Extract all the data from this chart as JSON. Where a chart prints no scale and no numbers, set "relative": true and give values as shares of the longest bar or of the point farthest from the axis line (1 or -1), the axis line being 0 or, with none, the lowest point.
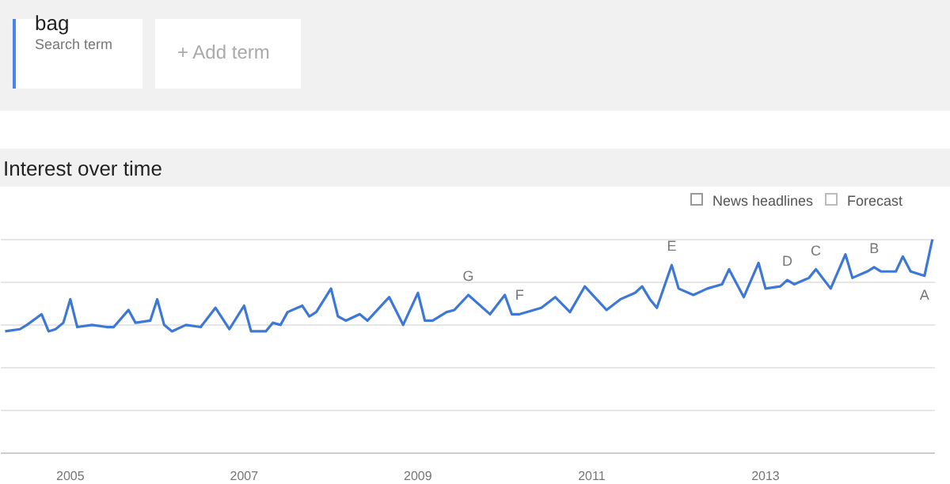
{
  "chart_data": {
    "type": "line",
    "title": "Interest over time",
    "relative": true,
    "grid": "y",
    "annotations": [
      "bag",
      "Search term",
      "+ Add term",
      "News headlines",
      "Forecast",
      {
        "text": "G",
        "x": 2009.58,
        "y": 0.74
      },
      {
        "text": "F",
        "x": 2010.17,
        "y": 0.65
      },
      {
        "text": "E",
        "x": 2011.92,
        "y": 0.88
      },
      {
        "text": "D",
        "x": 2013.25,
        "y": 0.81
      },
      {
        "text": "C",
        "x": 2013.58,
        "y": 0.86
      },
      {
        "text": "B",
        "x": 2014.25,
        "y": 0.87
      },
      {
        "text": "A",
        "x": 2014.83,
        "y": 0.83
      }
    ],
    "xlim": [
      2004.2,
      2014.95
    ],
    "xticks": [
      2005,
      2007,
      2009,
      2011,
      2013
    ],
    "x": [
      2004.25,
      2004.42,
      2004.5,
      2004.67,
      2004.75,
      2004.83,
      2004.92,
      2005,
      2005.08,
      2005.25,
      2005.42,
      2005.5,
      2005.67,
      2005.75,
      2005.92,
      2006,
      2006.08,
      2006.17,
      2006.33,
      2006.5,
      2006.67,
      2006.83,
      2007,
      2007.08,
      2007.25,
      2007.33,
      2007.42,
      2007.5,
      2007.67,
      2007.75,
      2007.83,
      2008,
      2008.08,
      2008.17,
      2008.33,
      2008.42,
      2008.67,
      2008.83,
      2009,
      2009.08,
      2009.17,
      2009.33,
      2009.42,
      2009.58,
      2009.83,
      2010,
      2010.08,
      2010.17,
      2010.42,
      2010.58,
      2010.75,
      2010.92,
      2011.17,
      2011.33,
      2011.5,
      2011.58,
      2011.67,
      2011.75,
      2011.92,
      2012,
      2012.17,
      2012.33,
      2012.5,
      2012.58,
      2012.75,
      2012.92,
      2013,
      2013.17,
      2013.25,
      2013.33,
      2013.5,
      2013.58,
      2013.75,
      2013.92,
      2014,
      2014.17,
      2014.25,
      2014.33,
      2014.5,
      2014.58,
      2014.67,
      2014.75,
      2014.83,
      2014.92
    ],
    "series": [
      {
        "color": "#3d78d8",
        "values": [
          0.57,
          0.58,
          0.6,
          0.65,
          0.57,
          0.58,
          0.61,
          0.72,
          0.59,
          0.6,
          0.59,
          0.59,
          0.67,
          0.61,
          0.62,
          0.72,
          0.6,
          0.57,
          0.6,
          0.59,
          0.68,
          0.58,
          0.69,
          0.57,
          0.57,
          0.61,
          0.6,
          0.66,
          0.69,
          0.64,
          0.66,
          0.77,
          0.64,
          0.62,
          0.65,
          0.62,
          0.73,
          0.6,
          0.75,
          0.62,
          0.62,
          0.66,
          0.67,
          0.74,
          0.65,
          0.74,
          0.65,
          0.65,
          0.68,
          0.73,
          0.66,
          0.78,
          0.67,
          0.72,
          0.75,
          0.78,
          0.72,
          0.68,
          0.88,
          0.77,
          0.74,
          0.77,
          0.79,
          0.86,
          0.73,
          0.89,
          0.77,
          0.78,
          0.81,
          0.79,
          0.82,
          0.86,
          0.77,
          0.93,
          0.82,
          0.85,
          0.87,
          0.85,
          0.85,
          0.92,
          0.85,
          0.84,
          0.83,
          1.0
        ]
      }
    ]
  }
}
